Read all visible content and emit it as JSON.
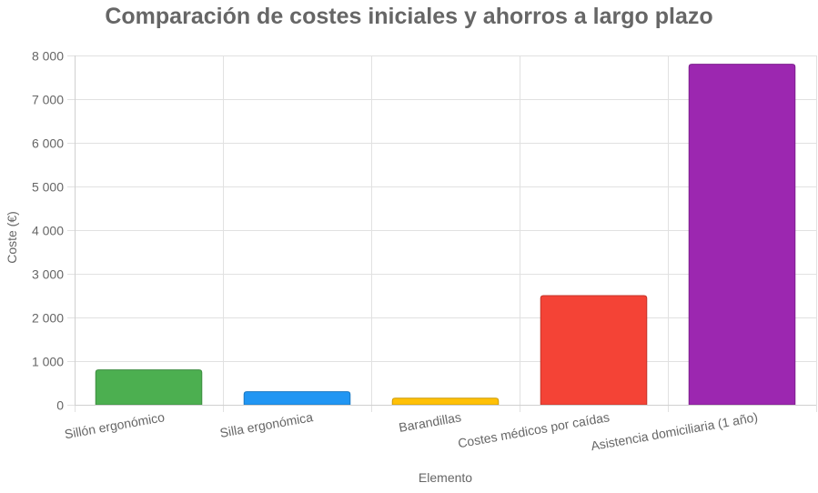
{
  "chart_data": {
    "type": "bar",
    "title": "Comparación de costes iniciales y ahorros a largo plazo",
    "xlabel": "Elemento",
    "ylabel": "Coste (€)",
    "categories": [
      "Sillón ergonómico",
      "Silla ergonómica",
      "Barandillas",
      "Costes médicos por caídas",
      "Asistencia domiciliaria (1 año)"
    ],
    "values": [
      800,
      300,
      150,
      2500,
      7800
    ],
    "colors": [
      "#4caf50",
      "#2196f3",
      "#ffc107",
      "#f44336",
      "#9c27b0"
    ],
    "border_colors": [
      "#3d8c40",
      "#1a78c2",
      "#cc9a06",
      "#c3362b",
      "#7d1f8d"
    ],
    "ylim": [
      0,
      8000
    ],
    "yticks": [
      0,
      1000,
      2000,
      3000,
      4000,
      5000,
      6000,
      7000,
      8000
    ],
    "ytick_labels": [
      "0",
      "1 000",
      "2 000",
      "3 000",
      "4 000",
      "5 000",
      "6 000",
      "7 000",
      "8 000"
    ],
    "grid": true,
    "legend": "none"
  }
}
